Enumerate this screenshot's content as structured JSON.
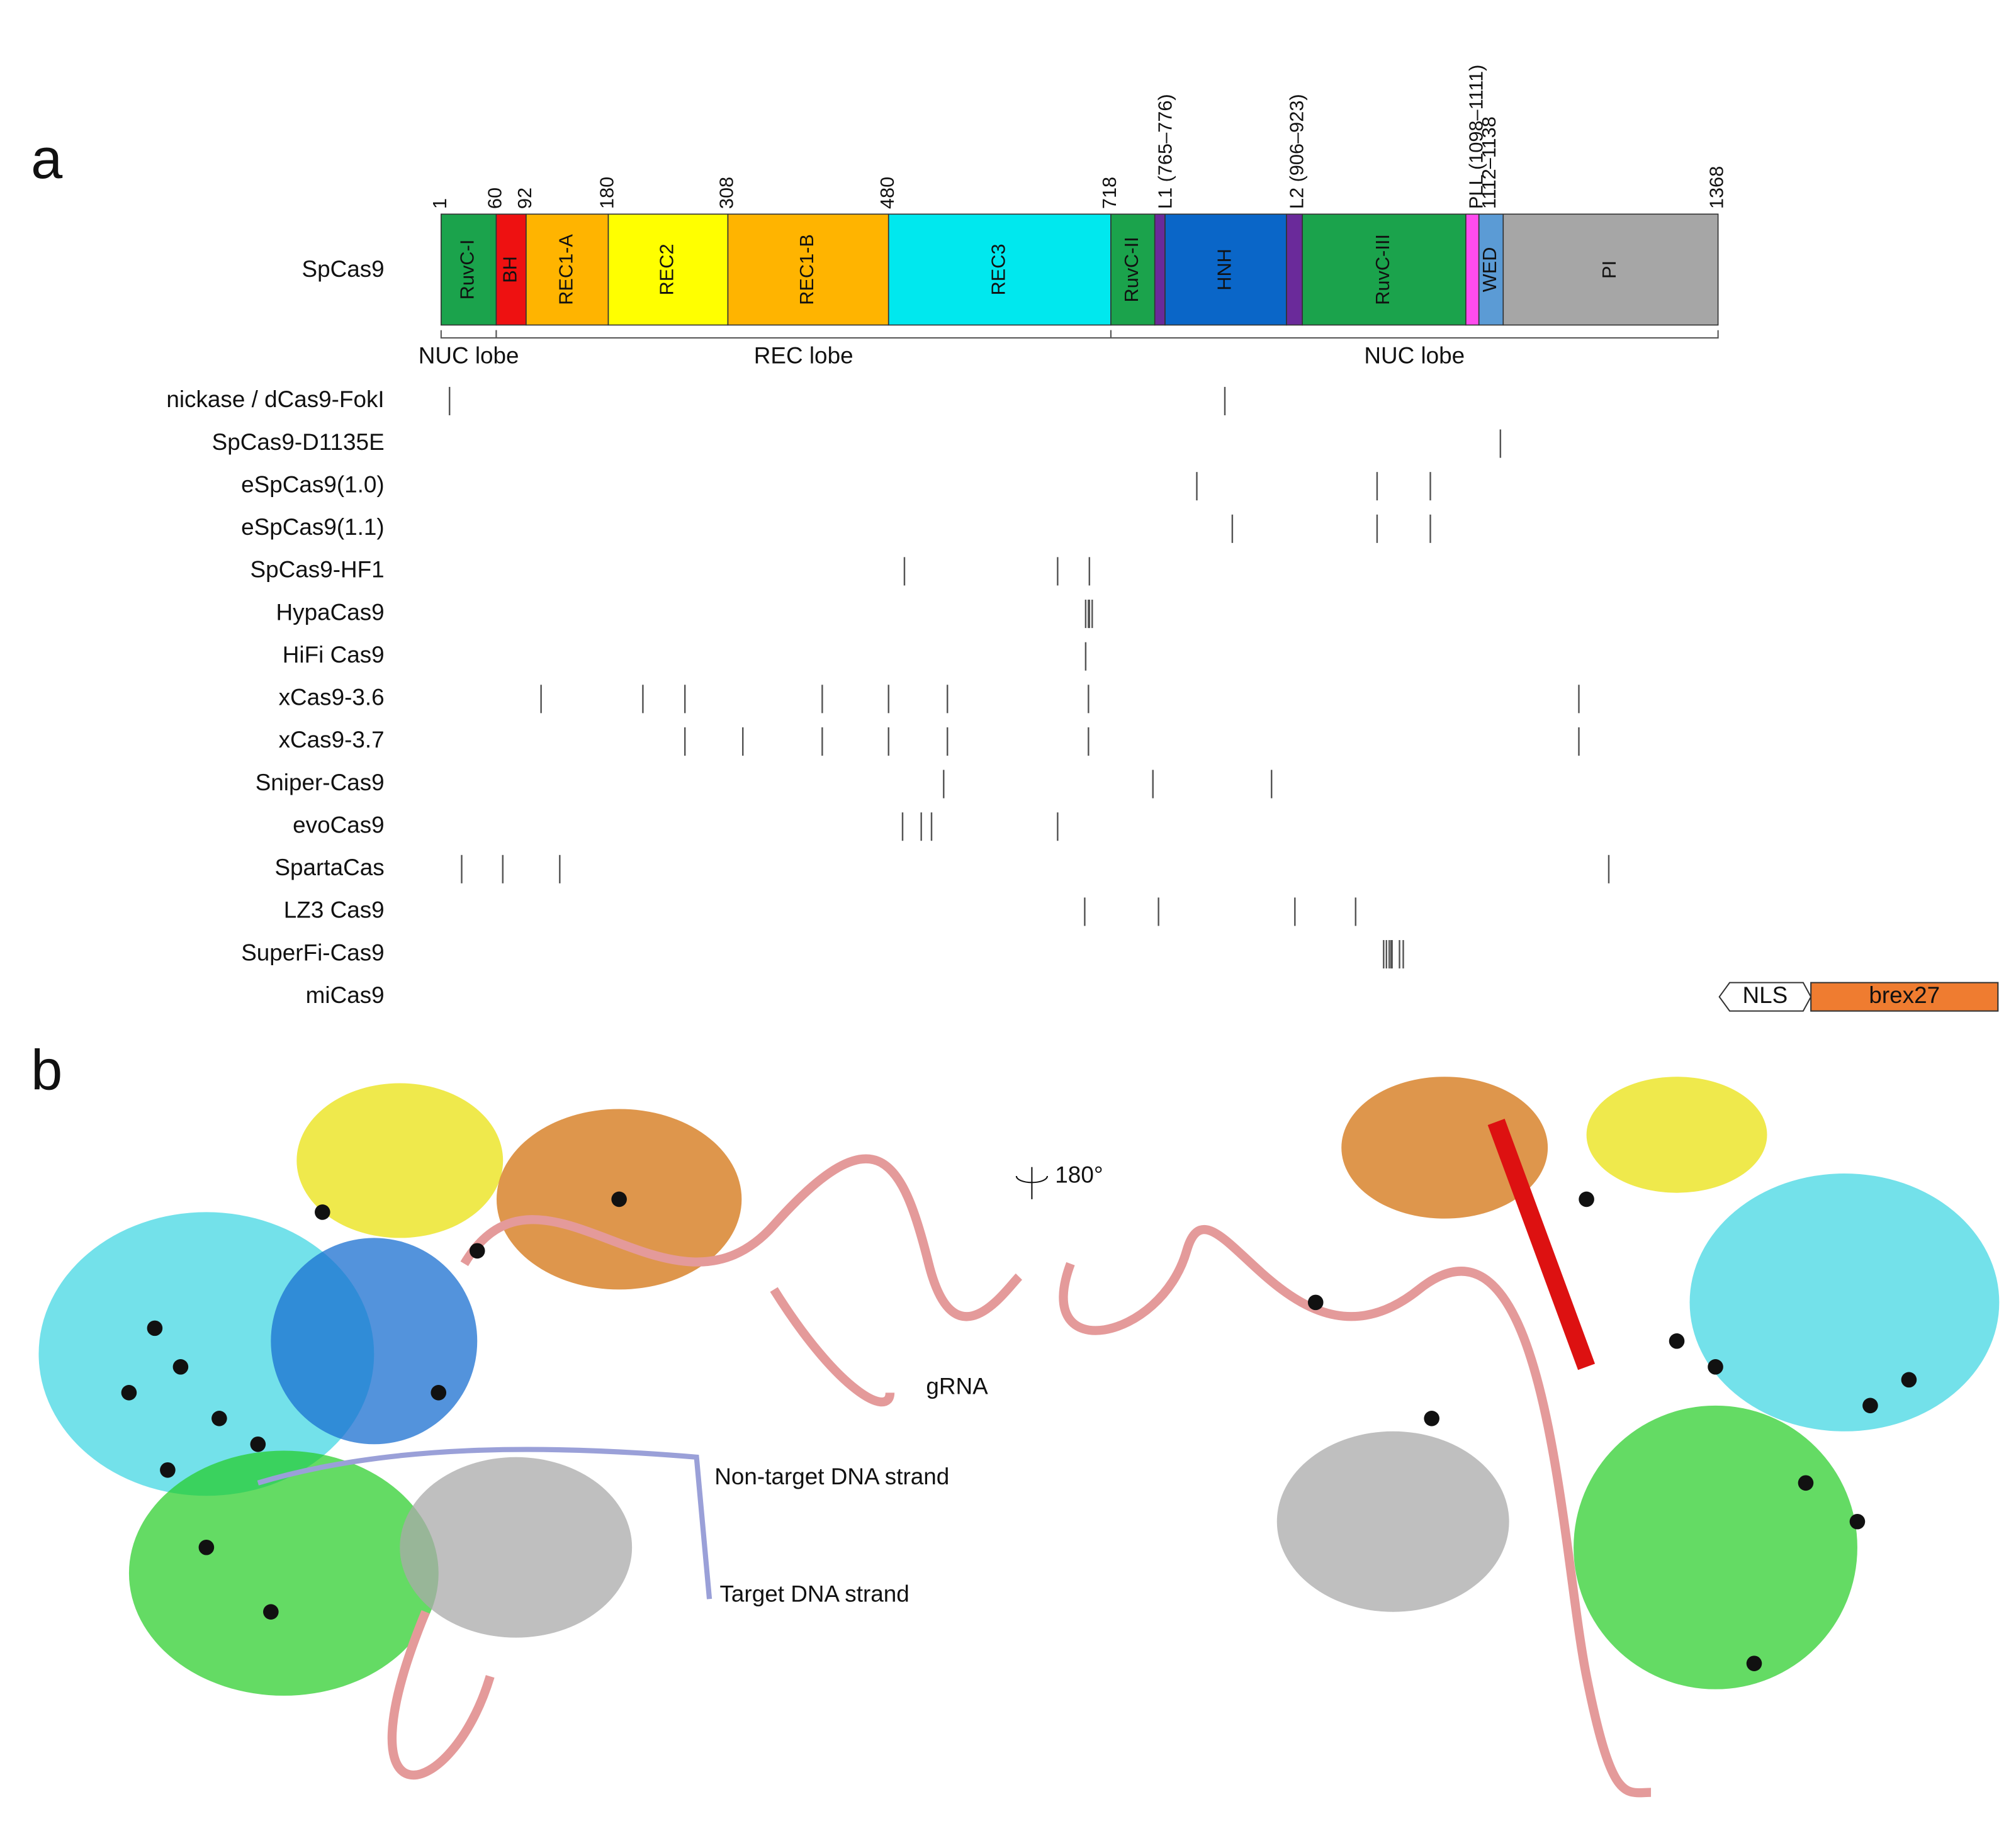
{
  "panel_a": {
    "label": "a",
    "protein": "SpCas9",
    "domains": [
      {
        "name": "RuvC-I",
        "start": 1,
        "end": 60,
        "color": "#1ba34c"
      },
      {
        "name": "BH",
        "start": 60,
        "end": 92,
        "color": "#ee1111"
      },
      {
        "name": "REC1-A",
        "start": 92,
        "end": 180,
        "color": "#ffb400"
      },
      {
        "name": "REC2",
        "start": 180,
        "end": 308,
        "color": "#ffff00"
      },
      {
        "name": "REC1-B",
        "start": 308,
        "end": 480,
        "color": "#ffb400"
      },
      {
        "name": "REC3",
        "start": 480,
        "end": 718,
        "color": "#00e8ee"
      },
      {
        "name": "RuvC-II",
        "start": 718,
        "end": 765,
        "color": "#1ba34c"
      },
      {
        "start": 765,
        "end": 776,
        "color": "#6a2a9a"
      },
      {
        "name": "HNH",
        "start": 776,
        "end": 906,
        "color": "#0a66c8"
      },
      {
        "start": 906,
        "end": 923,
        "color": "#6a2a9a"
      },
      {
        "name": "RuvC-III",
        "start": 923,
        "end": 1098,
        "color": "#1ba34c"
      },
      {
        "start": 1098,
        "end": 1112,
        "color": "#ff4cee"
      },
      {
        "name": "WED",
        "start": 1112,
        "end": 1138,
        "color": "#5b9bd5"
      },
      {
        "name": "PI",
        "start": 1138,
        "end": 1368,
        "color": "#a6a6a6"
      }
    ],
    "boundary_ticks": [
      1,
      60,
      92,
      180,
      308,
      480,
      718,
      {
        "value": 765,
        "label": "L1 (765–776)"
      },
      {
        "value": 906,
        "label": "L2 (906–923)"
      },
      {
        "value": 1098,
        "label": "PLL (1098–1111)"
      },
      {
        "value": 1112,
        "label": "1112–1138"
      },
      1368
    ],
    "lobes": [
      {
        "name": "NUC lobe",
        "start": 1,
        "end": 60
      },
      {
        "name": "REC lobe",
        "start": 60,
        "end": 718
      },
      {
        "name": "NUC lobe",
        "start": 718,
        "end": 1368
      }
    ],
    "variants": [
      {
        "name": "nickase / dCas9-FokI",
        "mutations": [
          10,
          840
        ]
      },
      {
        "name": "SpCas9-D1135E",
        "mutations": [
          1135
        ]
      },
      {
        "name": "eSpCas9(1.0)",
        "mutations": [
          810,
          1003,
          1060
        ]
      },
      {
        "name": "eSpCas9(1.1)",
        "mutations": [
          848,
          1003,
          1060
        ]
      },
      {
        "name": "SpCas9-HF1",
        "mutations": [
          497,
          661,
          695
        ]
      },
      {
        "name": "HypaCas9",
        "mutations": [
          691,
          694,
          695,
          698
        ]
      },
      {
        "name": "HiFi Cas9",
        "mutations": [
          691
        ]
      },
      {
        "name": "xCas9-3.6",
        "mutations": [
          108,
          217,
          262,
          409,
          480,
          543,
          694,
          1219
        ]
      },
      {
        "name": "xCas9-3.7",
        "mutations": [
          262,
          324,
          409,
          480,
          543,
          694,
          1219
        ]
      },
      {
        "name": "Sniper-Cas9",
        "mutations": [
          539,
          763,
          890
        ]
      },
      {
        "name": "evoCas9",
        "mutations": [
          495,
          515,
          526,
          661
        ]
      },
      {
        "name": "SpartaCas",
        "mutations": [
          23,
          67,
          128,
          1251
        ]
      },
      {
        "name": "LZ3 Cas9",
        "mutations": [
          690,
          769,
          915,
          980
        ]
      },
      {
        "name": "SuperFi-Cas9",
        "mutations": [
          1010,
          1013,
          1016,
          1018,
          1019,
          1027,
          1031
        ]
      },
      {
        "name": "miCas9",
        "mutations": [],
        "fusion": [
          "NLS",
          "brex27"
        ]
      }
    ]
  },
  "panel_b": {
    "label": "b",
    "rotation": "180°",
    "labels": [
      "gRNA",
      "Non-target DNA strand",
      "Target DNA strand"
    ]
  }
}
